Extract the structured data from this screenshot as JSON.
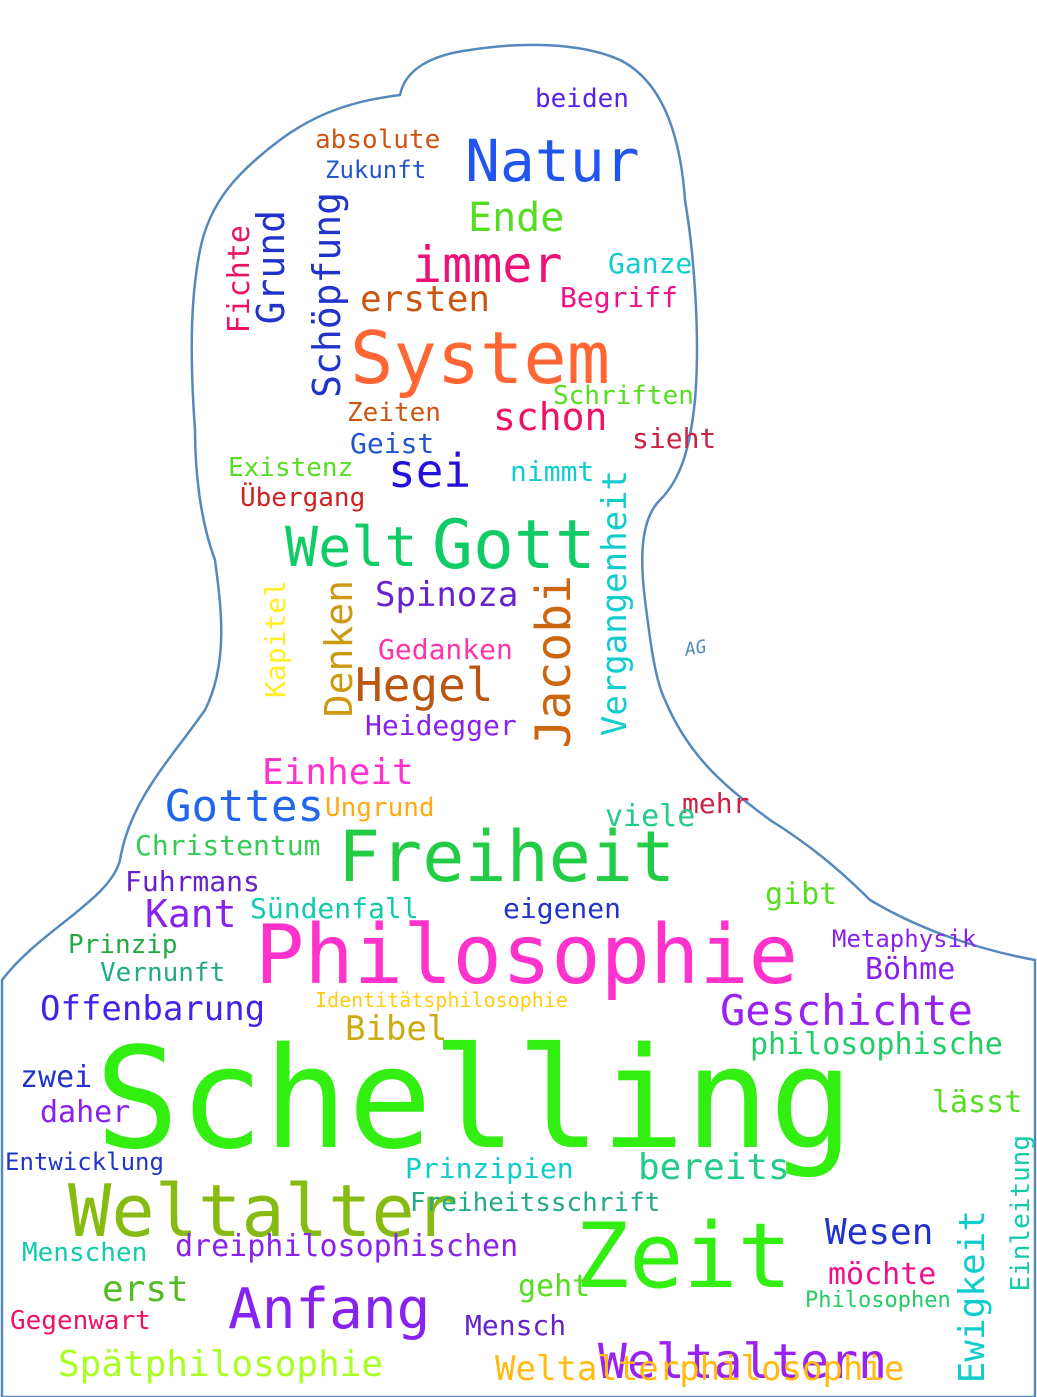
{
  "signature": "AG",
  "words": [
    {
      "text": "Schelling",
      "color": "#33ee11"
    },
    {
      "text": "Philosophie",
      "color": "#ff33cc"
    },
    {
      "text": "System",
      "color": "#ff6633"
    },
    {
      "text": "Zeit",
      "color": "#33ee11"
    },
    {
      "text": "Weltalter",
      "color": "#88bb11"
    },
    {
      "text": "Freiheit",
      "color": "#22cc44"
    },
    {
      "text": "Gott",
      "color": "#11cc66"
    },
    {
      "text": "Welt",
      "color": "#11cc66"
    },
    {
      "text": "Natur",
      "color": "#2255ee"
    },
    {
      "text": "immer",
      "color": "#ee1177"
    },
    {
      "text": "sei",
      "color": "#2211dd"
    },
    {
      "text": "Anfang",
      "color": "#8822ee"
    },
    {
      "text": "Weltaltern",
      "color": "#9922ee"
    },
    {
      "text": "Hegel",
      "color": "#bb5511"
    },
    {
      "text": "Gottes",
      "color": "#2266ee"
    },
    {
      "text": "Jacobi",
      "color": "#cc6611"
    },
    {
      "text": "Spätphilosophie",
      "color": "#aaff22"
    },
    {
      "text": "Weltalterphilosophie",
      "color": "#ffbb11"
    },
    {
      "text": "Geschichte",
      "color": "#9922ee"
    },
    {
      "text": "Ende",
      "color": "#55dd22"
    },
    {
      "text": "Schöpfung",
      "color": "#2233cc"
    },
    {
      "text": "schon",
      "color": "#ee1166"
    },
    {
      "text": "Vergangenheit",
      "color": "#11cccc"
    },
    {
      "text": "Spinoza",
      "color": "#6622cc"
    },
    {
      "text": "Einheit",
      "color": "#ff33cc"
    },
    {
      "text": "Kant",
      "color": "#8822ee"
    },
    {
      "text": "bereits",
      "color": "#22cc88"
    },
    {
      "text": "Offenbarung",
      "color": "#4422ee"
    },
    {
      "text": "Ewigkeit",
      "color": "#11cccc"
    },
    {
      "text": "Wesen",
      "color": "#2233cc"
    },
    {
      "text": "dreiphilosophischen",
      "color": "#8822ee"
    },
    {
      "text": "Menschen",
      "color": "#11ccaa"
    },
    {
      "text": "Fuhrmans",
      "color": "#6622cc"
    },
    {
      "text": "Christentum",
      "color": "#33cc55"
    },
    {
      "text": "Denken",
      "color": "#cc9911"
    },
    {
      "text": "Gedanken",
      "color": "#ff33aa"
    },
    {
      "text": "Heidegger",
      "color": "#8822ee"
    },
    {
      "text": "Grund",
      "color": "#2233cc"
    },
    {
      "text": "Fichte",
      "color": "#ee1166"
    },
    {
      "text": "ersten",
      "color": "#cc5511"
    },
    {
      "text": "Begriff",
      "color": "#ee1188"
    },
    {
      "text": "Ganze",
      "color": "#11cccc"
    },
    {
      "text": "beiden",
      "color": "#5522ee"
    },
    {
      "text": "absolute",
      "color": "#cc5511"
    },
    {
      "text": "Zukunft",
      "color": "#2255cc"
    },
    {
      "text": "Geist",
      "color": "#2255cc"
    },
    {
      "text": "Zeiten",
      "color": "#cc5511"
    },
    {
      "text": "Existenz",
      "color": "#55dd22"
    },
    {
      "text": "Übergang",
      "color": "#cc2222"
    },
    {
      "text": "Schriften",
      "color": "#55dd22"
    },
    {
      "text": "sieht",
      "color": "#cc2244"
    },
    {
      "text": "nimmt",
      "color": "#11cccc"
    },
    {
      "text": "Sündenfall",
      "color": "#11ccaa"
    },
    {
      "text": "Prinzip",
      "color": "#22aa44"
    },
    {
      "text": "Vernunft",
      "color": "#22aa88"
    },
    {
      "text": "Bibel",
      "color": "#ccaa11"
    },
    {
      "text": "Böhme",
      "color": "#8822ee"
    },
    {
      "text": "Metaphysik",
      "color": "#8822ee"
    },
    {
      "text": "mehr",
      "color": "#cc2244"
    },
    {
      "text": "viele",
      "color": "#22cc88"
    },
    {
      "text": "gibt",
      "color": "#55dd22"
    },
    {
      "text": "eigenen",
      "color": "#2233cc"
    },
    {
      "text": "Ungrund",
      "color": "#ffaa11"
    },
    {
      "text": "Einleitung",
      "color": "#11ccaa"
    },
    {
      "text": "Gegenwart",
      "color": "#ee1166"
    },
    {
      "text": "Mensch",
      "color": "#6622cc"
    },
    {
      "text": "geht",
      "color": "#55dd22"
    },
    {
      "text": "Prinzipien",
      "color": "#11cccc"
    },
    {
      "text": "Freiheitsschrift",
      "color": "#22aa88"
    },
    {
      "text": "erst",
      "color": "#55bb22"
    },
    {
      "text": "zwei",
      "color": "#2233cc"
    },
    {
      "text": "daher",
      "color": "#8822ee"
    },
    {
      "text": "Entwicklung",
      "color": "#2233cc"
    },
    {
      "text": "philosophische",
      "color": "#22cc66"
    },
    {
      "text": "lässt",
      "color": "#55dd22"
    },
    {
      "text": "Kapitel",
      "color": "#ffee22"
    },
    {
      "text": "Identitätsphilosophie",
      "color": "#ffcc11"
    },
    {
      "text": "möchte",
      "color": "#ee1188"
    },
    {
      "text": "Philosophen",
      "color": "#22cc66"
    }
  ]
}
